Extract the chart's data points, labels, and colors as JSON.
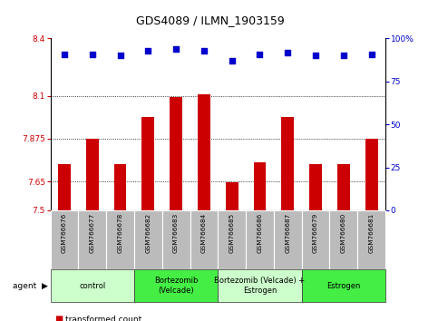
{
  "title": "GDS4089 / ILMN_1903159",
  "samples": [
    "GSM766676",
    "GSM766677",
    "GSM766678",
    "GSM766682",
    "GSM766683",
    "GSM766684",
    "GSM766685",
    "GSM766686",
    "GSM766687",
    "GSM766679",
    "GSM766680",
    "GSM766681"
  ],
  "bar_values": [
    7.74,
    7.875,
    7.74,
    7.99,
    8.095,
    8.11,
    7.645,
    7.75,
    7.99,
    7.74,
    7.74,
    7.875
  ],
  "percentile_values": [
    91,
    91,
    90,
    93,
    94,
    93,
    87,
    91,
    92,
    90,
    90,
    91
  ],
  "bar_color": "#cc0000",
  "dot_color": "#0000cc",
  "ylim_left": [
    7.5,
    8.4
  ],
  "ylim_right": [
    0,
    100
  ],
  "yticks_left": [
    7.5,
    7.65,
    7.875,
    8.1,
    8.4
  ],
  "ytick_labels_left": [
    "7.5",
    "7.65",
    "7.875",
    "8.1",
    "8.4"
  ],
  "yticks_right": [
    0,
    25,
    50,
    75,
    100
  ],
  "ytick_labels_right": [
    "0",
    "25",
    "50",
    "75",
    "100%"
  ],
  "hlines": [
    7.65,
    7.875,
    8.1
  ],
  "groups": [
    {
      "label": "control",
      "start": 0,
      "end": 3,
      "color": "#ccffcc"
    },
    {
      "label": "Bortezomib\n(Velcade)",
      "start": 3,
      "end": 6,
      "color": "#44ee44"
    },
    {
      "label": "Bortezomib (Velcade) +\nEstrogen",
      "start": 6,
      "end": 9,
      "color": "#ccffcc"
    },
    {
      "label": "Estrogen",
      "start": 9,
      "end": 12,
      "color": "#44ee44"
    }
  ],
  "bar_width": 0.45,
  "tick_area_bg": "#bbbbbb",
  "group_border_color": "#333333"
}
